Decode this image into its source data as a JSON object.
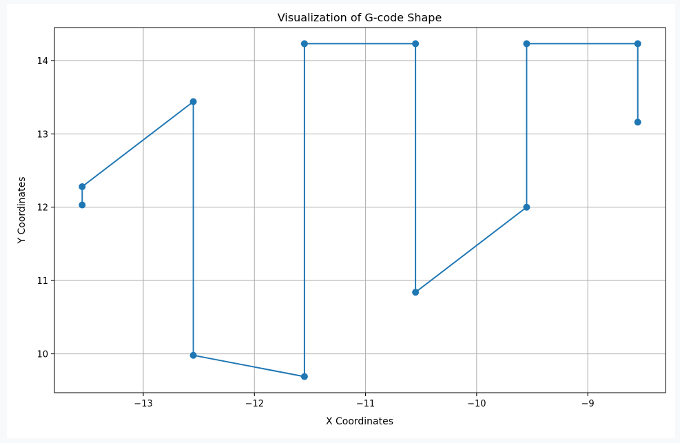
{
  "chart_data": {
    "type": "line",
    "title": "Visualization of G-code Shape",
    "xlabel": "X Coordinates",
    "ylabel": "Y Coordinates",
    "xlim": [
      -13.8,
      -8.3
    ],
    "ylim": [
      9.47,
      14.45
    ],
    "xticks": [
      -13,
      -12,
      -11,
      -10,
      -9
    ],
    "xtick_labels": [
      "−13",
      "−12",
      "−11",
      "−10",
      "−9"
    ],
    "yticks": [
      10,
      11,
      12,
      13,
      14
    ],
    "ytick_labels": [
      "10",
      "11",
      "12",
      "13",
      "14"
    ],
    "grid": true,
    "marker": "circle",
    "series": [
      {
        "color": "#1f77b4",
        "x": [
          -13.55,
          -13.55,
          -12.55,
          -12.55,
          -11.55,
          -11.55,
          -10.55,
          -10.55,
          -9.55,
          -9.55,
          -8.55,
          -8.55
        ],
        "y": [
          12.03,
          12.28,
          13.44,
          9.98,
          9.69,
          14.23,
          14.23,
          10.84,
          12.0,
          14.23,
          14.23,
          13.16
        ]
      }
    ]
  }
}
